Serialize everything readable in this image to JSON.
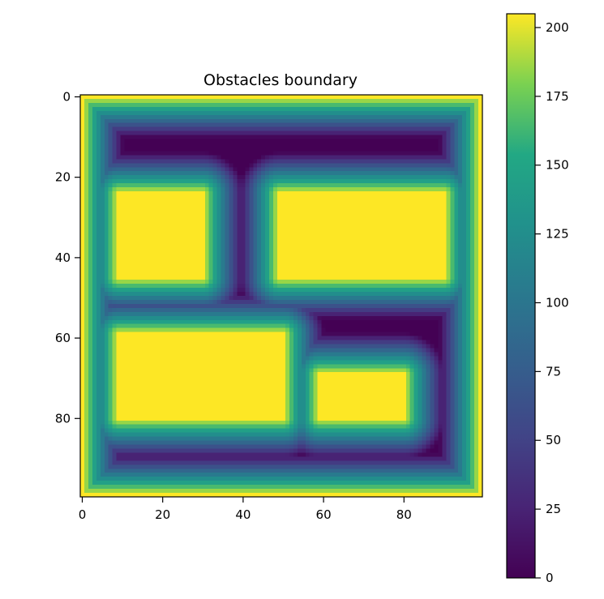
{
  "chart_data": {
    "type": "heatmap",
    "title": "Obstacles boundary",
    "xlabel": "",
    "ylabel": "",
    "grid_size": [
      100,
      100
    ],
    "x_ticks": [
      0,
      20,
      40,
      60,
      80
    ],
    "y_ticks": [
      0,
      20,
      40,
      60,
      80
    ],
    "xlim": [
      -0.5,
      99.5
    ],
    "ylim": [
      99.5,
      -0.5
    ],
    "y_axis_inverted": true,
    "colormap": "viridis",
    "grid": false,
    "value_range": [
      0,
      205
    ],
    "colorbar_ticks": [
      0,
      25,
      50,
      75,
      100,
      125,
      150,
      175,
      200
    ],
    "colorbar_position": "right",
    "description_of_field": "distance-based boundary value: high (~205) inside obstacles and at outer border, decaying to ~0 in free space",
    "outer_border": {
      "value": 205,
      "decay_per_cell": 20
    },
    "obstacles": [
      {
        "x_min": 9,
        "x_max": 30,
        "y_min": 24,
        "y_max": 45,
        "value": 205
      },
      {
        "x_min": 49,
        "x_max": 90,
        "y_min": 24,
        "y_max": 45,
        "value": 205
      },
      {
        "x_min": 9,
        "x_max": 50,
        "y_min": 59,
        "y_max": 80,
        "value": 205
      },
      {
        "x_min": 59,
        "x_max": 80,
        "y_min": 69,
        "y_max": 80,
        "value": 205
      }
    ],
    "obstacle_decay_per_cell": 20
  }
}
